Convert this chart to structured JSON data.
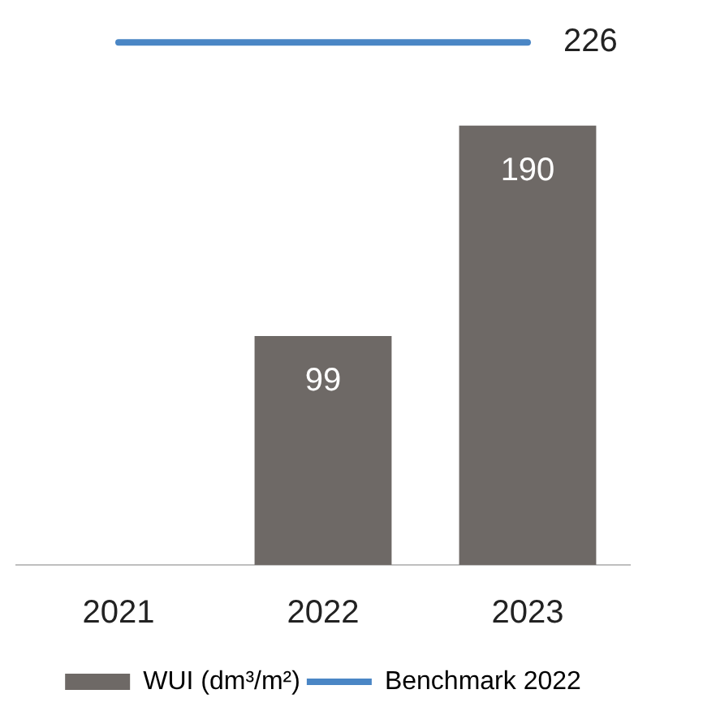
{
  "chart_data": {
    "type": "bar",
    "categories": [
      "2021",
      "2022",
      "2023"
    ],
    "series": [
      {
        "name": "WUI (dm³/m²)",
        "color": "#6e6966",
        "values": [
          null,
          99,
          190
        ],
        "value_labels": [
          null,
          "99",
          "190"
        ]
      },
      {
        "name": "Benchmark 2022",
        "type": "line",
        "color": "#4a86c5",
        "values": [
          226,
          226,
          226
        ],
        "value_labels": [
          null,
          null,
          "226"
        ]
      }
    ],
    "grid": false,
    "legend": "bottom",
    "marker": "none",
    "line_style": "solid"
  }
}
